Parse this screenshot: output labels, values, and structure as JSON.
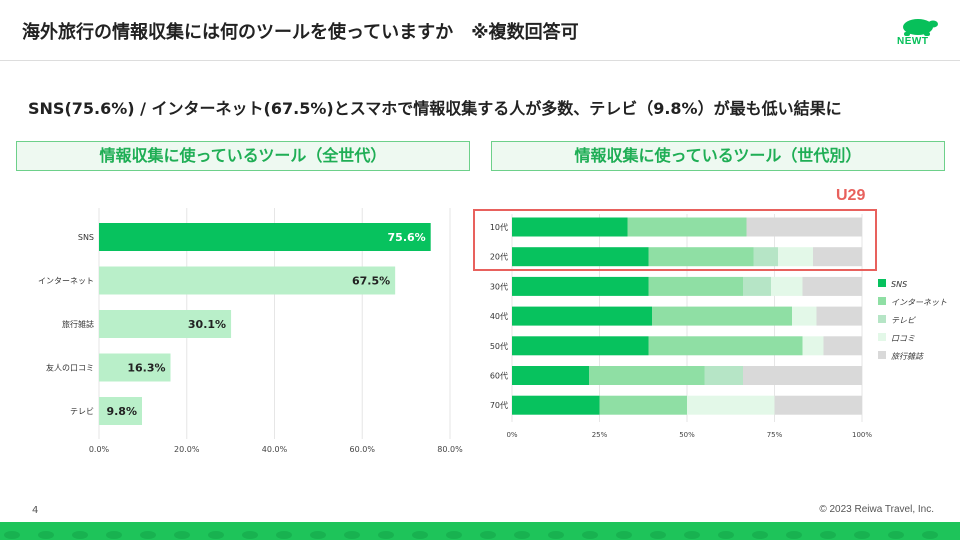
{
  "header": {
    "title": "海外旅行の情報収集には何のツールを使っていますか　※複数回答可",
    "logo_text": "NEWT"
  },
  "subtitle": "SNS(75.6%) / インターネット(67.5%)とスマホで情報収集する人が多数、テレビ（9.8%）が最も低い結果に",
  "left_section": {
    "header": "情報収集に使っているツール（全世代）"
  },
  "right_section": {
    "header": "情報収集に使っているツール（世代別）",
    "highlight_label": "U29"
  },
  "footer": {
    "page_number": "4",
    "copyright": "© 2023 Reiwa Travel, Inc."
  },
  "colors": {
    "accent": "#1ec45a",
    "bar_strong": "#07c25e",
    "bar_light": "#b9efc9",
    "highlight": "#e8615d",
    "seg_sns": "#07c25e",
    "seg_internet": "#8fdfa4",
    "seg_tv": "#b6e5c6",
    "seg_kuchikomi": "#e3f8e8",
    "seg_magazine": "#d9d9d9"
  },
  "chart_data": [
    {
      "type": "bar",
      "orientation": "horizontal",
      "categories": [
        "SNS",
        "インターネット",
        "旅行雑誌",
        "友人の口コミ",
        "テレビ"
      ],
      "values": [
        75.6,
        67.5,
        30.1,
        16.3,
        9.8
      ],
      "value_labels": [
        "75.6%",
        "67.5%",
        "30.1%",
        "16.3%",
        "9.8%"
      ],
      "xlim": [
        0,
        80
      ],
      "x_ticks": [
        "0.0%",
        "20.0%",
        "40.0%",
        "60.0%",
        "80.0%"
      ],
      "grid": true
    },
    {
      "type": "bar",
      "orientation": "horizontal",
      "stacked": true,
      "categories": [
        "10代",
        "20代",
        "30代",
        "40代",
        "50代",
        "60代",
        "70代"
      ],
      "series": [
        {
          "name": "SNS",
          "values": [
            33,
            39,
            39,
            40,
            39,
            22,
            25
          ]
        },
        {
          "name": "インターネット",
          "values": [
            34,
            30,
            27,
            40,
            44,
            33,
            25
          ]
        },
        {
          "name": "テレビ",
          "values": [
            0,
            7,
            8,
            0,
            0,
            11,
            0
          ]
        },
        {
          "name": "口コミ",
          "values": [
            0,
            10,
            9,
            7,
            6,
            0,
            25
          ]
        },
        {
          "name": "旅行雑誌",
          "values": [
            33,
            14,
            17,
            13,
            11,
            34,
            25
          ]
        }
      ],
      "xlim": [
        0,
        100
      ],
      "x_ticks": [
        "0%",
        "25%",
        "50%",
        "75%",
        "100%"
      ],
      "legend_position": "right",
      "grid": true
    }
  ]
}
